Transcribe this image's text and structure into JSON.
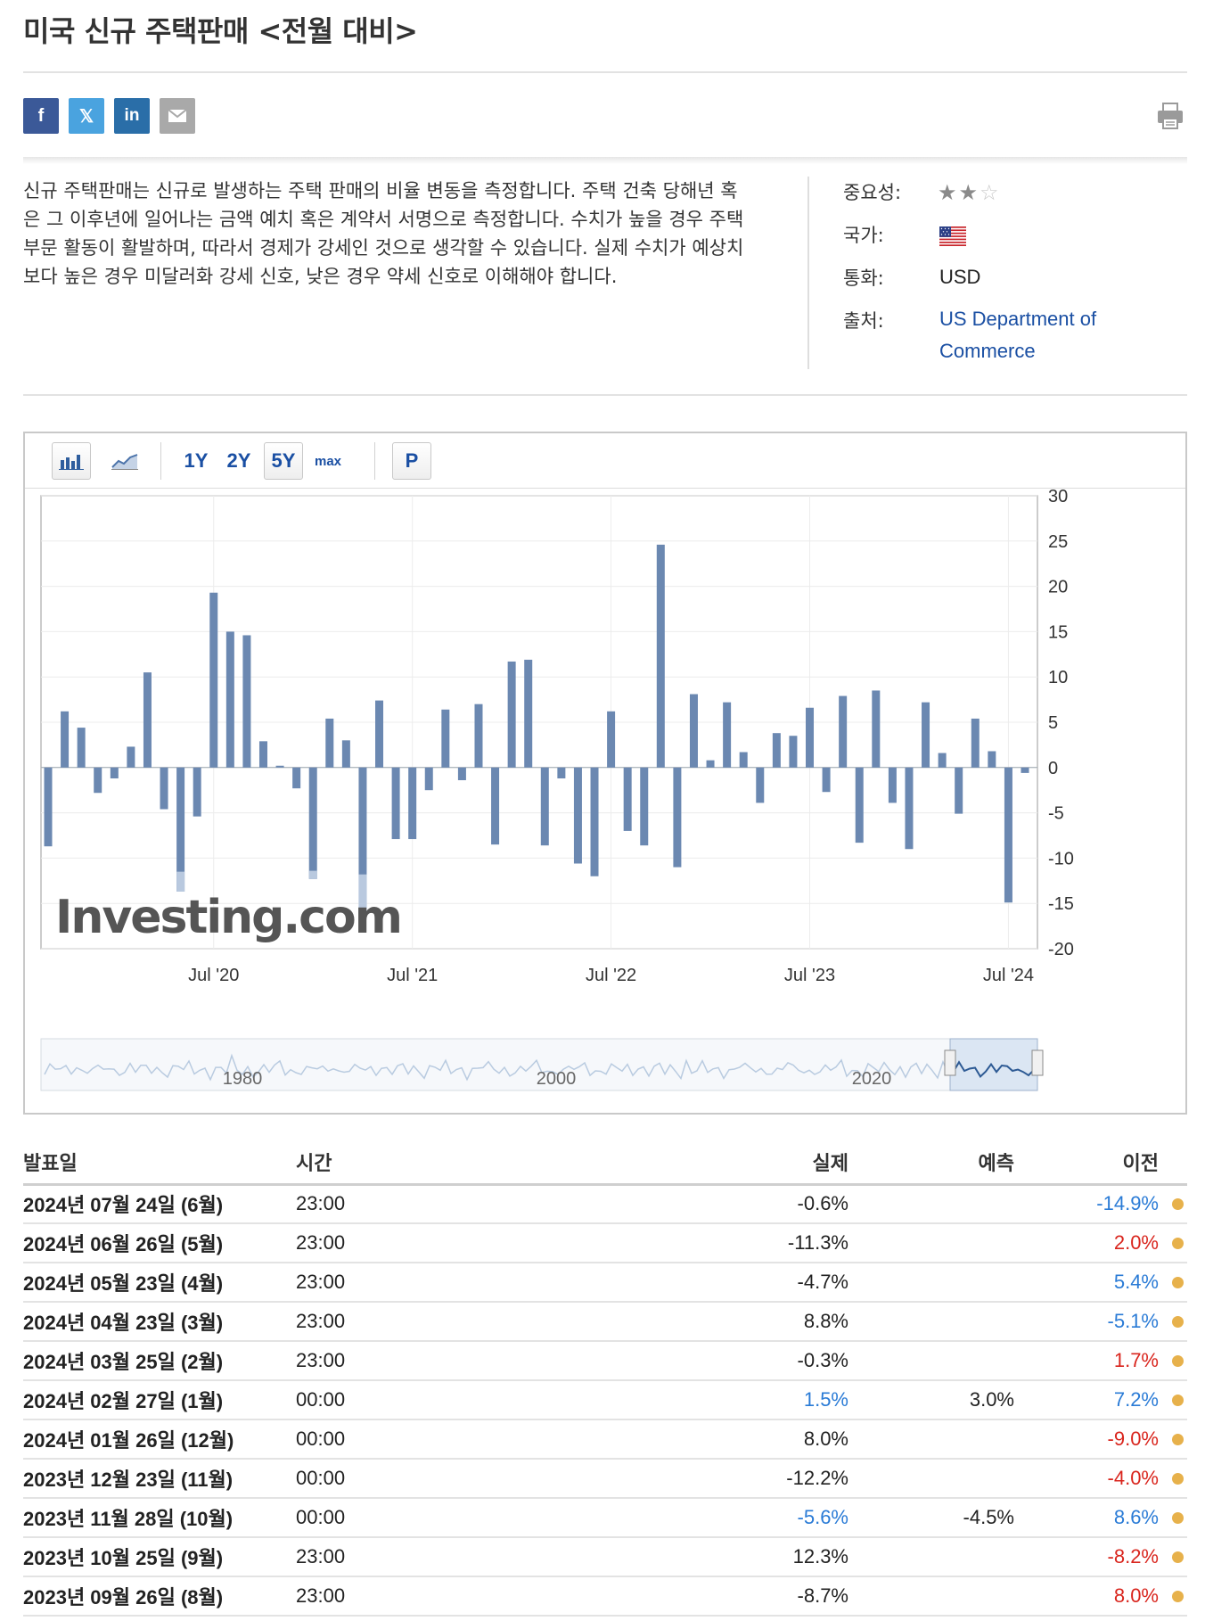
{
  "header": {
    "title": "미국 신규 주택판매 <전월 대비>"
  },
  "share": {
    "facebook": "f",
    "twitter": "𝕏",
    "linkedin": "in",
    "icons": [
      "facebook-icon",
      "twitter-icon",
      "linkedin-icon",
      "mail-icon",
      "print-icon"
    ]
  },
  "description": {
    "text": "신규 주택판매는 신규로 발생하는 주택 판매의 비율 변동을 측정합니다. 주택 건축 당해년 혹은 그 이후년에 일어나는 금액 예치 혹은 계약서 서명으로 측정합니다. 수치가 높을 경우 주택 부문 활동이 활발하며, 따라서 경제가 강세인 것으로 생각할 수 있습니다. 실제 수치가 예상치보다 높은 경우 미달러화 강세 신호, 낮은 경우 약세 신호로 이해해야 합니다."
  },
  "info": {
    "importance_label": "중요성:",
    "importance_stars": 2,
    "importance_max": 3,
    "country_label": "국가:",
    "currency_label": "통화:",
    "currency_value": "USD",
    "source_label": "출처:",
    "source_value": "US Department of Commerce"
  },
  "chart_toolbar": {
    "btn_1y": "1Y",
    "btn_2y": "2Y",
    "btn_5y": "5Y",
    "btn_max": "max",
    "btn_p": "P",
    "selected": "5Y"
  },
  "chart_data": {
    "type": "bar",
    "series_color": "#6b88b1",
    "y_ticks": [
      "30",
      "25",
      "20",
      "15",
      "10",
      "5",
      "0",
      "-5",
      "-10",
      "-15",
      "-20"
    ],
    "ylim": [
      -20,
      30
    ],
    "x_tick_labels": [
      "Jul '20",
      "Jul '21",
      "Jul '22",
      "Jul '23",
      "Jul '24"
    ],
    "x_tick_positions": [
      10,
      22,
      34,
      46,
      58
    ],
    "values": [
      -8.7,
      6.2,
      4.4,
      -2.8,
      -1.2,
      2.3,
      10.5,
      -4.6,
      -13.7,
      -5.4,
      19.3,
      15.0,
      14.6,
      2.9,
      0.2,
      -2.3,
      -12.3,
      5.4,
      3.0,
      -16.2,
      7.4,
      -7.9,
      -7.9,
      -2.5,
      6.4,
      -1.4,
      7.0,
      -8.5,
      11.7,
      11.9,
      -8.6,
      -1.2,
      -10.6,
      -12.0,
      6.2,
      -7.0,
      -8.6,
      24.6,
      -11.0,
      8.1,
      0.8,
      7.2,
      1.7,
      -3.9,
      3.8,
      3.5,
      6.6,
      -2.7,
      7.9,
      -8.3,
      8.5,
      -3.9,
      -9.0,
      7.2,
      1.6,
      -5.1,
      5.4,
      1.8,
      -14.9,
      -0.6
    ],
    "revision_overlay": [
      {
        "index": 8,
        "from": -11.5,
        "to": -13.7
      },
      {
        "index": 16,
        "from": -11.4,
        "to": -12.3
      },
      {
        "index": 19,
        "from": -11.8,
        "to": -16.2
      }
    ],
    "navigator_labels": [
      "1980",
      "2000",
      "2020"
    ],
    "watermark": "Investing.com"
  },
  "table": {
    "headers": [
      "발표일",
      "시간",
      "실제",
      "예측",
      "이전"
    ],
    "rows": [
      {
        "date": "2024년 07월 24일 (6월)",
        "time": "23:00",
        "actual": "-0.6%",
        "actual_class": "neu",
        "forecast": "",
        "previous": "-14.9%",
        "previous_class": "neg"
      },
      {
        "date": "2024년 06월 26일 (5월)",
        "time": "23:00",
        "actual": "-11.3%",
        "actual_class": "neu",
        "forecast": "",
        "previous": "2.0%",
        "previous_class": "pos"
      },
      {
        "date": "2024년 05월 23일 (4월)",
        "time": "23:00",
        "actual": "-4.7%",
        "actual_class": "neu",
        "forecast": "",
        "previous": "5.4%",
        "previous_class": "neg"
      },
      {
        "date": "2024년 04월 23일 (3월)",
        "time": "23:00",
        "actual": "8.8%",
        "actual_class": "neu",
        "forecast": "",
        "previous": "-5.1%",
        "previous_class": "neg"
      },
      {
        "date": "2024년 03월 25일 (2월)",
        "time": "23:00",
        "actual": "-0.3%",
        "actual_class": "neu",
        "forecast": "",
        "previous": "1.7%",
        "previous_class": "pos"
      },
      {
        "date": "2024년 02월 27일 (1월)",
        "time": "00:00",
        "actual": "1.5%",
        "actual_class": "neg",
        "forecast": "3.0%",
        "previous": "7.2%",
        "previous_class": "neg"
      },
      {
        "date": "2024년 01월 26일 (12월)",
        "time": "00:00",
        "actual": "8.0%",
        "actual_class": "neu",
        "forecast": "",
        "previous": "-9.0%",
        "previous_class": "pos"
      },
      {
        "date": "2023년 12월 23일 (11월)",
        "time": "00:00",
        "actual": "-12.2%",
        "actual_class": "neu",
        "forecast": "",
        "previous": "-4.0%",
        "previous_class": "pos"
      },
      {
        "date": "2023년 11월 28일 (10월)",
        "time": "00:00",
        "actual": "-5.6%",
        "actual_class": "neg",
        "forecast": "-4.5%",
        "previous": "8.6%",
        "previous_class": "neg"
      },
      {
        "date": "2023년 10월 25일 (9월)",
        "time": "23:00",
        "actual": "12.3%",
        "actual_class": "neu",
        "forecast": "",
        "previous": "-8.2%",
        "previous_class": "pos"
      },
      {
        "date": "2023년 09월 26일 (8월)",
        "time": "23:00",
        "actual": "-8.7%",
        "actual_class": "neu",
        "forecast": "",
        "previous": "8.0%",
        "previous_class": "pos"
      }
    ]
  }
}
